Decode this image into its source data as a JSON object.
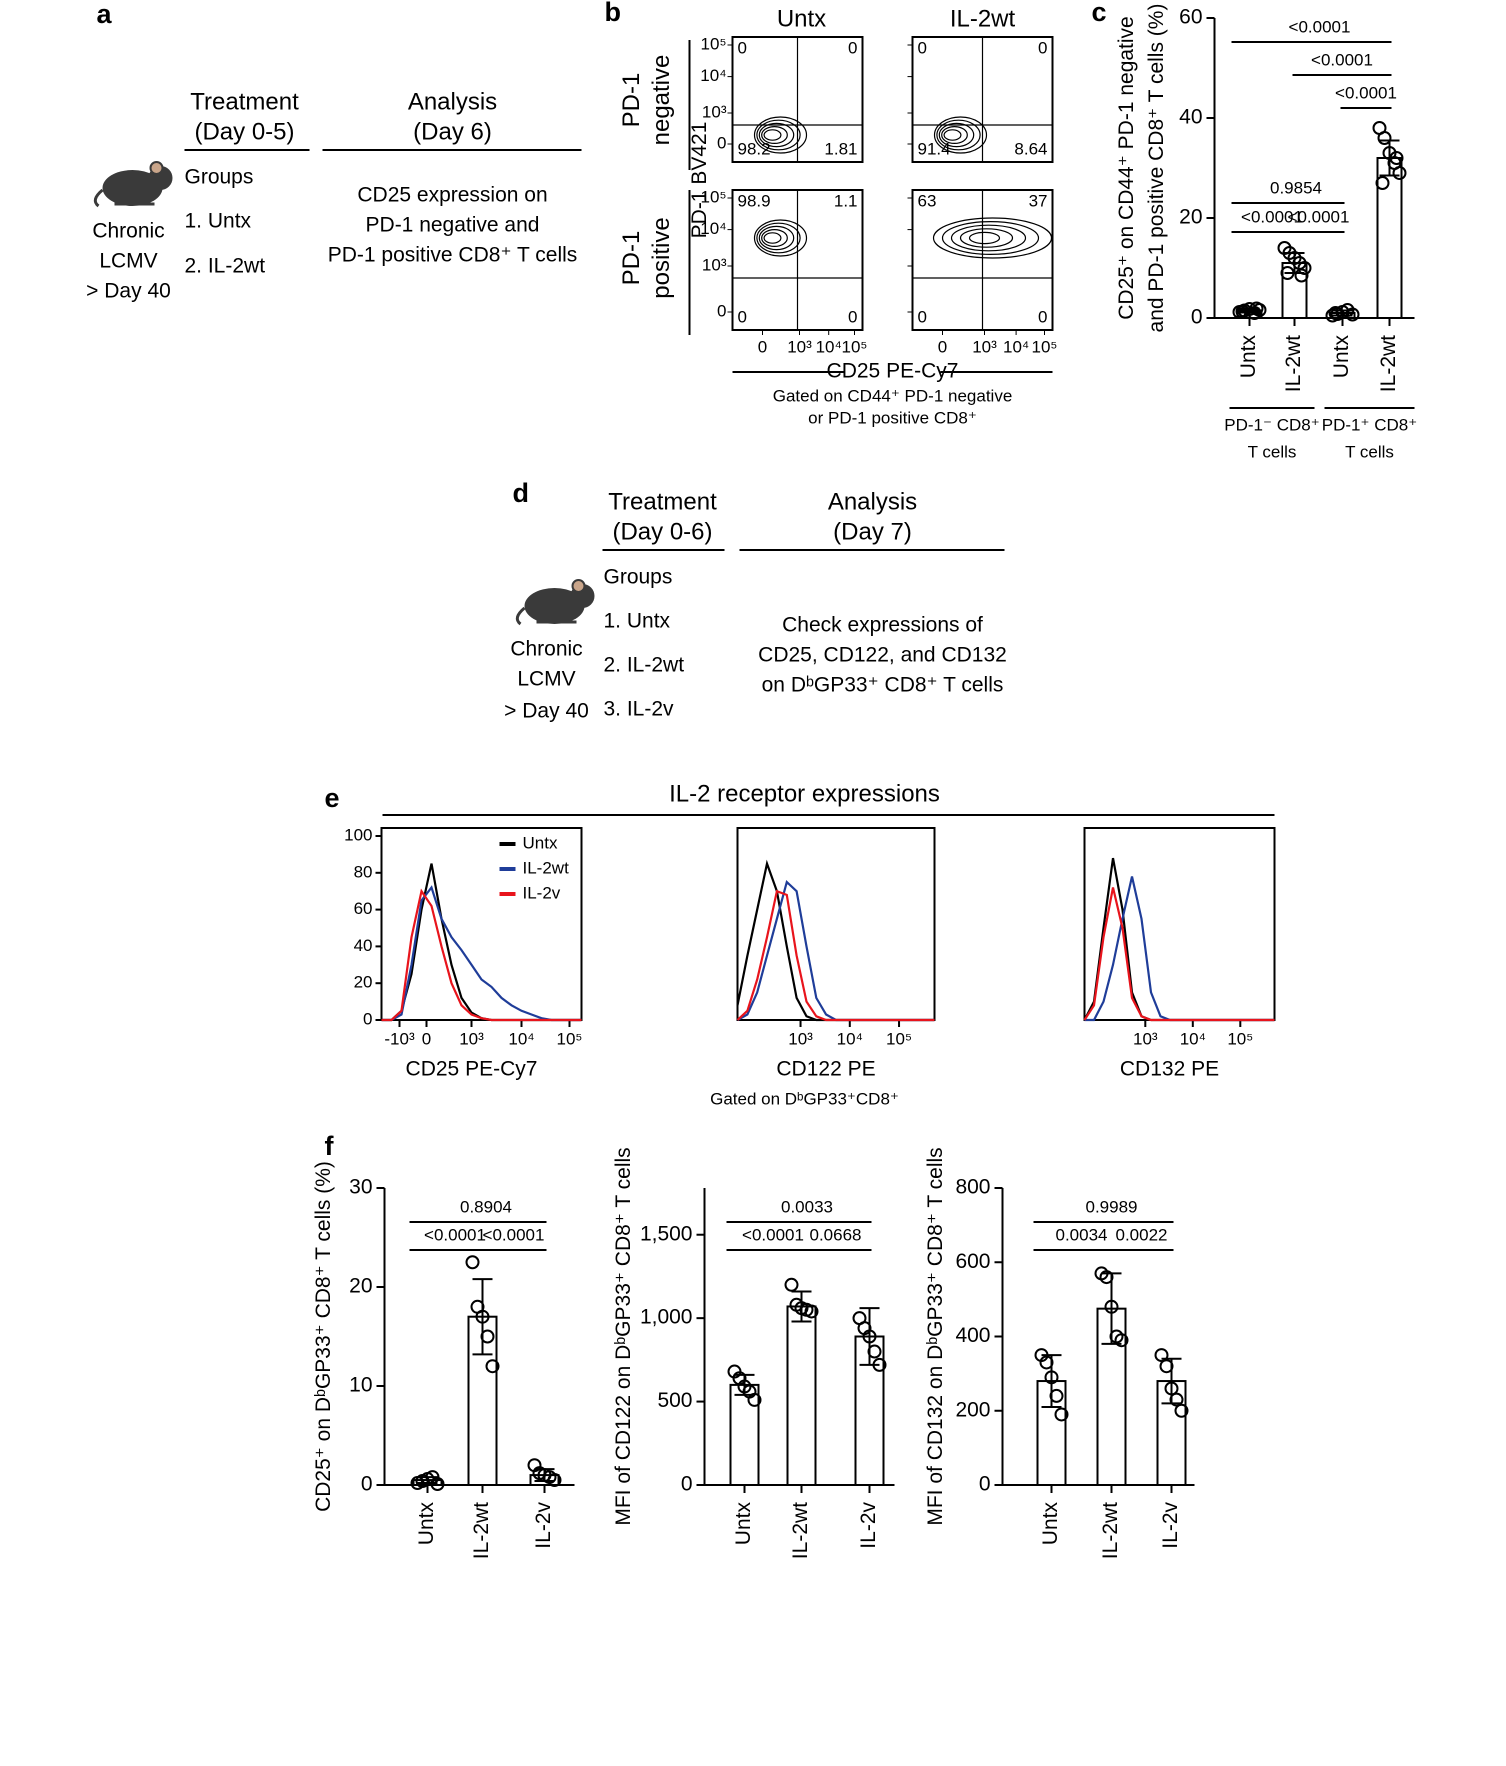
{
  "panel_labels": [
    "a",
    "b",
    "c",
    "d",
    "e",
    "f"
  ],
  "panel_a": {
    "treatment": "Treatment",
    "treatment_days": "(Day 0-5)",
    "analysis": "Analysis",
    "analysis_day": "(Day 6)",
    "groups_title": "Groups",
    "groups": [
      "1. Untx",
      "2. IL-2wt"
    ],
    "model": [
      "Chronic",
      "LCMV",
      "> Day 40"
    ],
    "analysis_text": [
      "CD25 expression on",
      "PD-1 negative and",
      "PD-1 positive CD8⁺ T cells"
    ]
  },
  "panel_b": {
    "columns": [
      "Untx",
      "IL-2wt"
    ],
    "rows": [
      [
        "PD-1",
        "negative"
      ],
      [
        "PD-1",
        "positive"
      ]
    ],
    "y_axis_label": "PD-1 BV421",
    "x_axis_label": "CD25 PE-Cy7",
    "gating": [
      "Gated on CD44⁺ PD-1 negative",
      "or PD-1 positive CD8⁺"
    ],
    "y_tick_labels": [
      "10⁵",
      "10⁴",
      "10³",
      "0"
    ],
    "x_tick_labels": [
      "0",
      "10³",
      "10⁴",
      "10⁵"
    ],
    "quadrants": [
      [
        0,
        0,
        98.2,
        1.81
      ],
      [
        0,
        0,
        91.4,
        8.64
      ],
      [
        98.9,
        1.1,
        0,
        0
      ],
      [
        63,
        37,
        0,
        0
      ]
    ]
  },
  "panel_d": {
    "treatment": "Treatment",
    "treatment_days": "(Day 0-6)",
    "analysis": "Analysis",
    "analysis_day": "(Day 7)",
    "groups_title": "Groups",
    "groups": [
      "1. Untx",
      "2. IL-2wt",
      "3. IL-2v"
    ],
    "model": [
      "Chronic",
      "LCMV",
      "> Day 40"
    ],
    "analysis_text": [
      "Check expressions of",
      "CD25, CD122, and CD132",
      "on DᵇGP33⁺ CD8⁺ T cells"
    ]
  },
  "panel_e": {
    "title": "IL-2 receptor expressions",
    "gating": "Gated on DᵇGP33⁺CD8⁺"
  },
  "chart_data": [
    {
      "type": "bar",
      "categories": [
        "Untx",
        "IL-2wt",
        "Untx",
        "IL-2wt"
      ],
      "color": "#ffffff",
      "values": [
        1.5,
        11,
        1,
        32
      ],
      "errors": [
        0.4,
        2,
        0.5,
        3.5
      ],
      "points": [
        [
          1.2,
          1.5,
          1.8,
          1.0,
          1.6,
          1.3,
          1.9
        ],
        [
          14,
          13,
          12,
          11,
          10,
          9,
          8.5
        ],
        [
          0.5,
          0.8,
          1.2,
          1.6,
          0.7,
          1.0
        ],
        [
          38,
          36,
          33,
          31,
          29,
          27,
          32
        ]
      ],
      "ylim": [
        0,
        60
      ],
      "yticks": [
        0,
        20,
        40,
        60
      ],
      "y_label": [
        "CD25⁺ on CD44⁺ PD-1 negative",
        "and PD-1 positive CD8⁺ T cells (%)"
      ],
      "group_labels": [
        [
          "PD-1⁻ CD8⁺",
          "T cells"
        ],
        [
          "PD-1⁺ CD8⁺",
          "T cells"
        ]
      ],
      "comparisons": [
        "<0.0001",
        "<0.0001",
        "0.9854",
        "<0.0001",
        "<0.0001",
        "<0.0001"
      ]
    },
    {
      "type": "line",
      "x": [
        0,
        50,
        100,
        150,
        200,
        250,
        300,
        350,
        400,
        450,
        500,
        550,
        600,
        650,
        700,
        750,
        800,
        850,
        900,
        950,
        1000
      ],
      "series": [
        {
          "name": "Untx",
          "color": "#000000",
          "values": [
            0,
            0,
            5,
            25,
            60,
            85,
            55,
            30,
            12,
            4,
            1,
            0,
            0,
            0,
            0,
            0,
            0,
            0,
            0,
            0,
            0
          ]
        },
        {
          "name": "IL-2wt",
          "color": "#1f3d99",
          "values": [
            0,
            0,
            3,
            30,
            65,
            72,
            55,
            45,
            38,
            30,
            22,
            18,
            12,
            8,
            5,
            3,
            1,
            0,
            0,
            0,
            0
          ]
        },
        {
          "name": "IL-2v",
          "color": "#e8141c",
          "values": [
            0,
            0,
            5,
            45,
            70,
            62,
            40,
            20,
            8,
            3,
            1,
            0,
            0,
            0,
            0,
            0,
            0,
            0,
            0,
            0,
            0
          ]
        }
      ],
      "xlim": [
        0,
        1000
      ],
      "xticks": [
        {
          "value": 90,
          "label": "-10³"
        },
        {
          "value": 225,
          "label": "0"
        },
        {
          "value": 450,
          "label": "10³"
        },
        {
          "value": 700,
          "label": "10⁴"
        },
        {
          "value": 940,
          "label": "10⁵"
        }
      ],
      "ylim": [
        0,
        100
      ],
      "yticks": [
        0,
        20,
        40,
        60,
        80,
        100
      ],
      "x_label": "CD25 PE-Cy7"
    },
    {
      "type": "line",
      "x": [
        0,
        50,
        100,
        150,
        200,
        250,
        300,
        350,
        400,
        450,
        500,
        550,
        600,
        650,
        700,
        750,
        800,
        850,
        900,
        950,
        1000
      ],
      "series": [
        {
          "color": "#000000",
          "values": [
            8,
            35,
            60,
            85,
            70,
            40,
            12,
            2,
            0,
            0,
            0,
            0,
            0,
            0,
            0,
            0,
            0,
            0,
            0,
            0,
            0
          ]
        },
        {
          "color": "#1f3d99",
          "values": [
            0,
            3,
            15,
            35,
            55,
            75,
            70,
            40,
            12,
            3,
            0,
            0,
            0,
            0,
            0,
            0,
            0,
            0,
            0,
            0,
            0
          ]
        },
        {
          "color": "#e8141c",
          "values": [
            0,
            5,
            22,
            45,
            70,
            68,
            35,
            10,
            2,
            0,
            0,
            0,
            0,
            0,
            0,
            0,
            0,
            0,
            0,
            0,
            0
          ]
        }
      ],
      "xlim": [
        0,
        1000
      ],
      "xticks": [
        {
          "value": 320,
          "label": "10³"
        },
        {
          "value": 570,
          "label": "10⁴"
        },
        {
          "value": 820,
          "label": "10⁵"
        }
      ],
      "ylim": [
        0,
        100
      ],
      "x_label": "CD122 PE"
    },
    {
      "type": "line",
      "x": [
        0,
        50,
        100,
        150,
        200,
        250,
        300,
        350,
        400,
        450,
        500,
        550,
        600,
        650,
        700,
        750,
        800,
        850,
        900,
        950,
        1000
      ],
      "series": [
        {
          "color": "#000000",
          "values": [
            0,
            10,
            50,
            88,
            60,
            15,
            2,
            0,
            0,
            0,
            0,
            0,
            0,
            0,
            0,
            0,
            0,
            0,
            0,
            0,
            0
          ]
        },
        {
          "color": "#1f3d99",
          "values": [
            0,
            0,
            10,
            30,
            55,
            78,
            55,
            15,
            2,
            0,
            0,
            0,
            0,
            0,
            0,
            0,
            0,
            0,
            0,
            0,
            0
          ]
        },
        {
          "color": "#e8141c",
          "values": [
            0,
            8,
            45,
            72,
            50,
            12,
            2,
            0,
            0,
            0,
            0,
            0,
            0,
            0,
            0,
            0,
            0,
            0,
            0,
            0,
            0
          ]
        }
      ],
      "xlim": [
        0,
        1000
      ],
      "xticks": [
        {
          "value": 320,
          "label": "10³"
        },
        {
          "value": 570,
          "label": "10⁴"
        },
        {
          "value": 820,
          "label": "10⁵"
        }
      ],
      "ylim": [
        0,
        100
      ],
      "x_label": "CD132 PE"
    },
    {
      "type": "bar",
      "categories": [
        "Untx",
        "IL-2wt",
        "IL-2v"
      ],
      "color": "#ffffff",
      "values": [
        0.5,
        17,
        1
      ],
      "errors": [
        0.3,
        3.8,
        0.6
      ],
      "points": [
        [
          0.2,
          0.4,
          0.6,
          0.8,
          0.1
        ],
        [
          22.5,
          18,
          17,
          15,
          12
        ],
        [
          2,
          1.2,
          1,
          0.8,
          0.5
        ]
      ],
      "ylim": [
        0,
        30
      ],
      "yticks": [
        0,
        10,
        20,
        30
      ],
      "y_label": [
        "CD25⁺ on DᵇGP33⁺ CD8⁺ T cells (%)"
      ],
      "comparisons": [
        "0.8904",
        "<0.0001",
        "<0.0001"
      ]
    },
    {
      "type": "bar",
      "categories": [
        "Untx",
        "IL-2wt",
        "IL-2v"
      ],
      "color": "#ffffff",
      "values": [
        600,
        1070,
        890
      ],
      "errors": [
        60,
        90,
        170
      ],
      "points": [
        [
          680,
          640,
          590,
          560,
          510
        ],
        [
          1200,
          1080,
          1060,
          1050,
          1040
        ],
        [
          1000,
          940,
          890,
          800,
          720
        ]
      ],
      "ylim": [
        0,
        1780
      ],
      "yticks": [
        0,
        500,
        {
          "value": 1000,
          "label": "1,000"
        },
        {
          "value": 1500,
          "label": "1,500"
        }
      ],
      "y_label": [
        "MFI of CD122 on DᵇGP33⁺ CD8⁺ T cells"
      ],
      "comparisons": [
        "0.0033",
        "<0.0001",
        "0.0668"
      ]
    },
    {
      "type": "bar",
      "categories": [
        "Untx",
        "IL-2wt",
        "IL-2v"
      ],
      "color": "#ffffff",
      "values": [
        280,
        475,
        280
      ],
      "errors": [
        70,
        95,
        60
      ],
      "points": [
        [
          350,
          330,
          290,
          240,
          190
        ],
        [
          570,
          560,
          480,
          400,
          390
        ],
        [
          350,
          320,
          260,
          230,
          200
        ]
      ],
      "ylim": [
        0,
        800
      ],
      "yticks": [
        0,
        200,
        400,
        600,
        800
      ],
      "y_label": [
        "MFI of CD132 on DᵇGP33⁺ CD8⁺ T cells"
      ],
      "comparisons": [
        "0.9989",
        "0.0034",
        "0.0022"
      ]
    }
  ]
}
